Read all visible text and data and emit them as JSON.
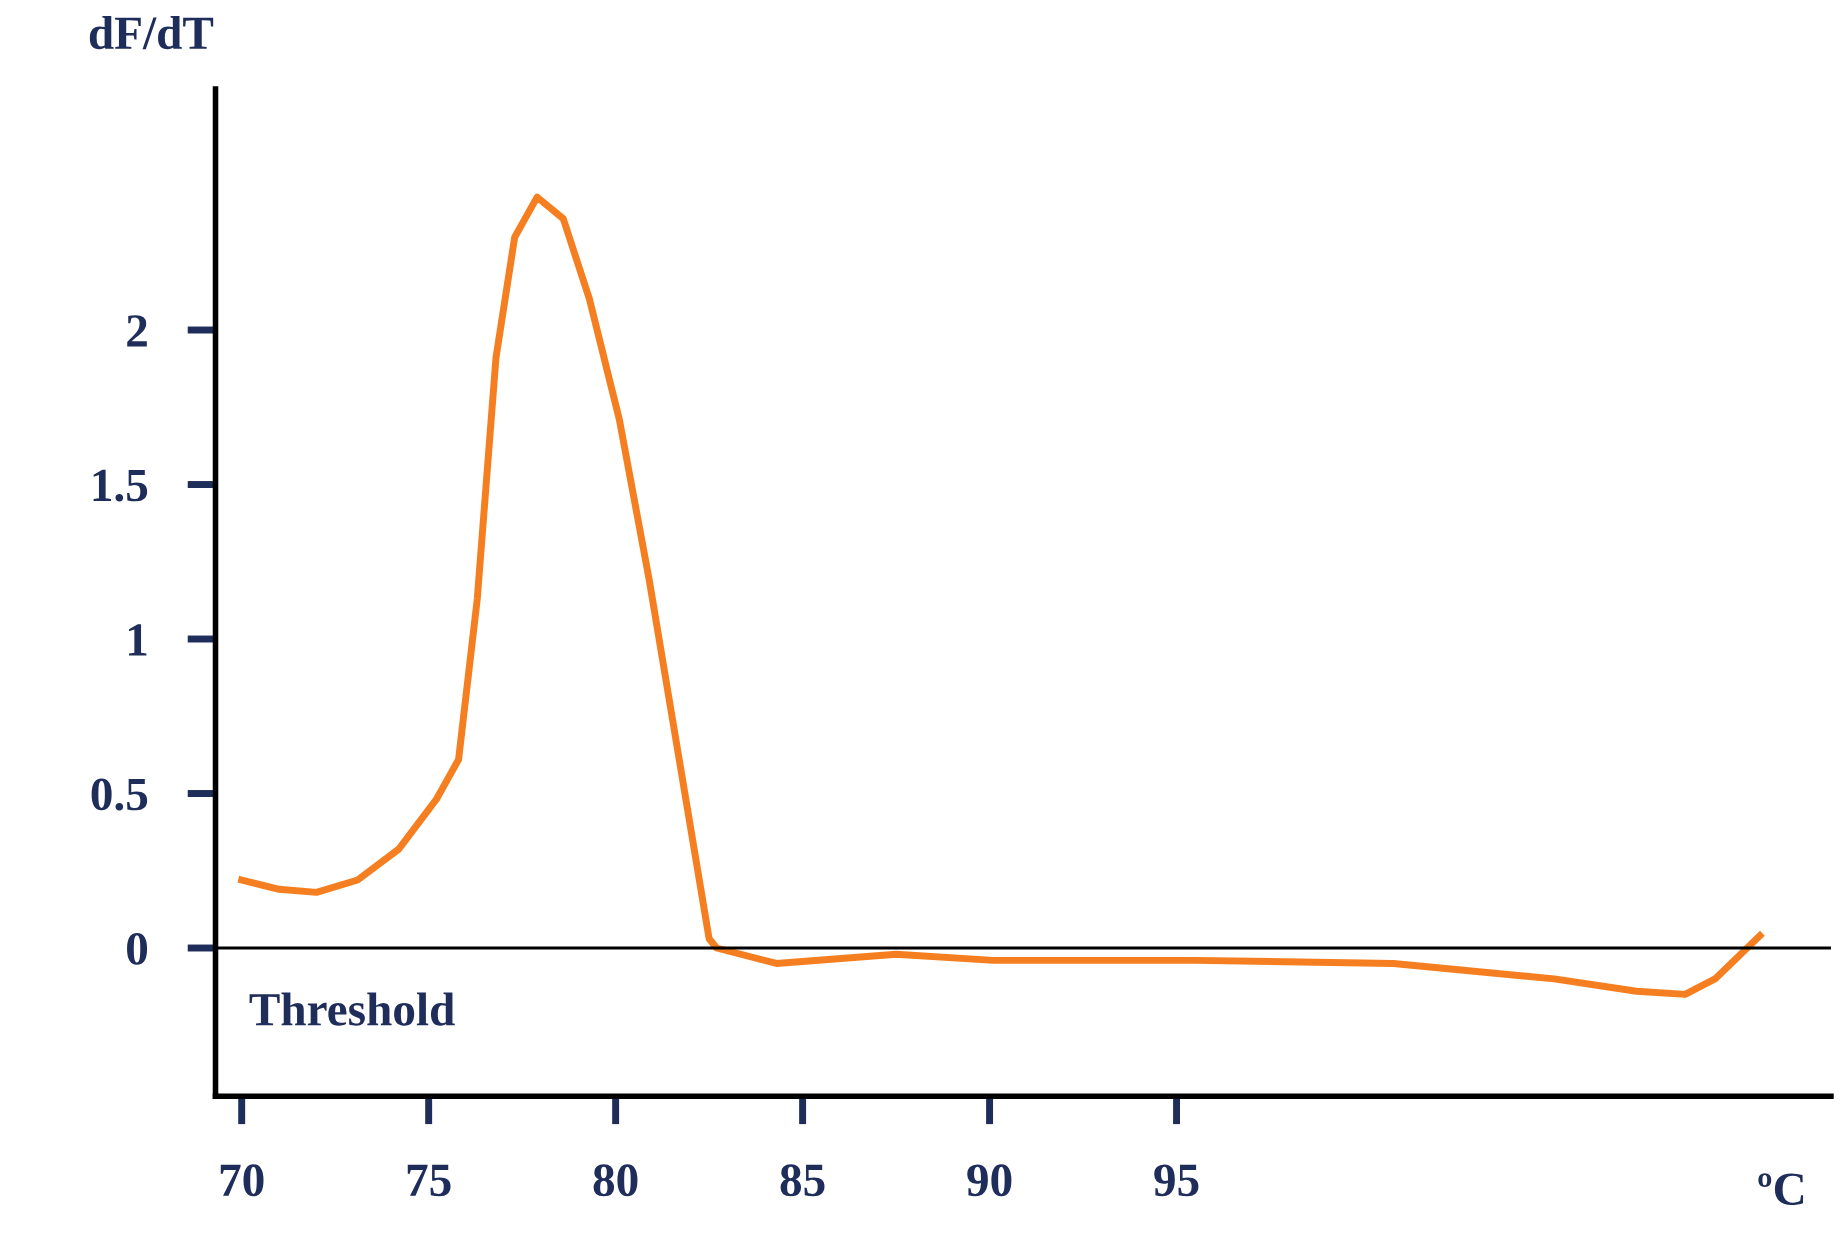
{
  "chart_data": {
    "type": "line",
    "xlabel": "ºC",
    "ylabel": "dF/dT",
    "xlim": [
      69.3,
      112.5
    ],
    "ylim": [
      -0.48,
      2.78
    ],
    "xticks": [
      70,
      75,
      80,
      85,
      90,
      95
    ],
    "yticks": [
      0,
      0.5,
      1,
      1.5,
      2
    ],
    "grid": false,
    "marker": "none",
    "line_style": "solid",
    "ref_lines": [
      {
        "axis": "y",
        "value": 0,
        "label": "Threshold",
        "color": "#000000"
      }
    ],
    "series": [
      {
        "color": "#f57f20",
        "x": [
          70,
          71,
          72,
          73.1,
          74.2,
          75.2,
          75.8,
          76.3,
          76.8,
          77.3,
          77.9,
          78.6,
          79.3,
          80.1,
          80.9,
          81.7,
          82.5,
          82.7,
          84.3,
          87.5,
          90.1,
          95.5,
          100.8,
          105.1,
          107.3,
          108.6,
          109.4,
          110.6
        ],
        "values": [
          0.22,
          0.19,
          0.18,
          0.22,
          0.32,
          0.48,
          0.61,
          1.13,
          1.91,
          2.3,
          2.43,
          2.36,
          2.1,
          1.71,
          1.19,
          0.61,
          0.03,
          0,
          -0.05,
          -0.02,
          -0.04,
          -0.04,
          -0.05,
          -0.1,
          -0.14,
          -0.15,
          -0.1,
          0.04
        ]
      }
    ]
  }
}
